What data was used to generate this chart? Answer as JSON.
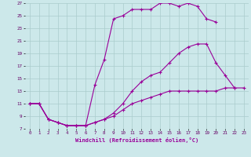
{
  "xlabel": "Windchill (Refroidissement éolien,°C)",
  "bg_color": "#cce8ea",
  "grid_color": "#aacccc",
  "line_color": "#990099",
  "xlim": [
    -0.5,
    23.5
  ],
  "ylim": [
    7,
    27
  ],
  "yticks": [
    7,
    9,
    11,
    13,
    15,
    17,
    19,
    21,
    23,
    25,
    27
  ],
  "xticks": [
    0,
    1,
    2,
    3,
    4,
    5,
    6,
    7,
    8,
    9,
    10,
    11,
    12,
    13,
    14,
    15,
    16,
    17,
    18,
    19,
    20,
    21,
    22,
    23
  ],
  "series": [
    {
      "x": [
        0,
        1,
        2,
        3,
        4,
        5,
        6,
        7,
        8,
        9,
        10,
        11,
        12,
        13,
        14,
        15,
        16,
        17,
        18,
        19,
        20,
        21,
        22,
        23
      ],
      "y": [
        11,
        11,
        8.5,
        8.0,
        7.5,
        7.5,
        7.5,
        8.0,
        8.5,
        9.0,
        10.0,
        11.0,
        11.5,
        12.0,
        12.5,
        13.0,
        13.0,
        13.0,
        13.0,
        13.0,
        13.0,
        13.5,
        13.5,
        13.5
      ]
    },
    {
      "x": [
        0,
        1,
        2,
        3,
        4,
        5,
        6,
        7,
        8,
        9,
        10,
        11,
        12,
        13,
        14,
        15,
        16,
        17,
        18,
        19,
        20,
        21,
        22
      ],
      "y": [
        11,
        11,
        8.5,
        8.0,
        7.5,
        7.5,
        7.5,
        8.0,
        8.5,
        9.5,
        11.0,
        13.0,
        14.5,
        15.5,
        16.0,
        17.5,
        19.0,
        20.0,
        20.5,
        20.5,
        17.5,
        15.5,
        13.5
      ]
    },
    {
      "x": [
        0,
        1,
        2,
        3,
        4,
        5,
        6,
        7,
        8,
        9,
        10,
        11,
        12,
        13,
        14,
        15,
        16,
        17,
        18,
        19,
        20
      ],
      "y": [
        11,
        11,
        8.5,
        8.0,
        7.5,
        7.5,
        7.5,
        14.0,
        18.0,
        24.5,
        25.0,
        26.0,
        26.0,
        26.0,
        27.0,
        27.0,
        26.5,
        27.0,
        26.5,
        24.5,
        24.0
      ]
    }
  ]
}
